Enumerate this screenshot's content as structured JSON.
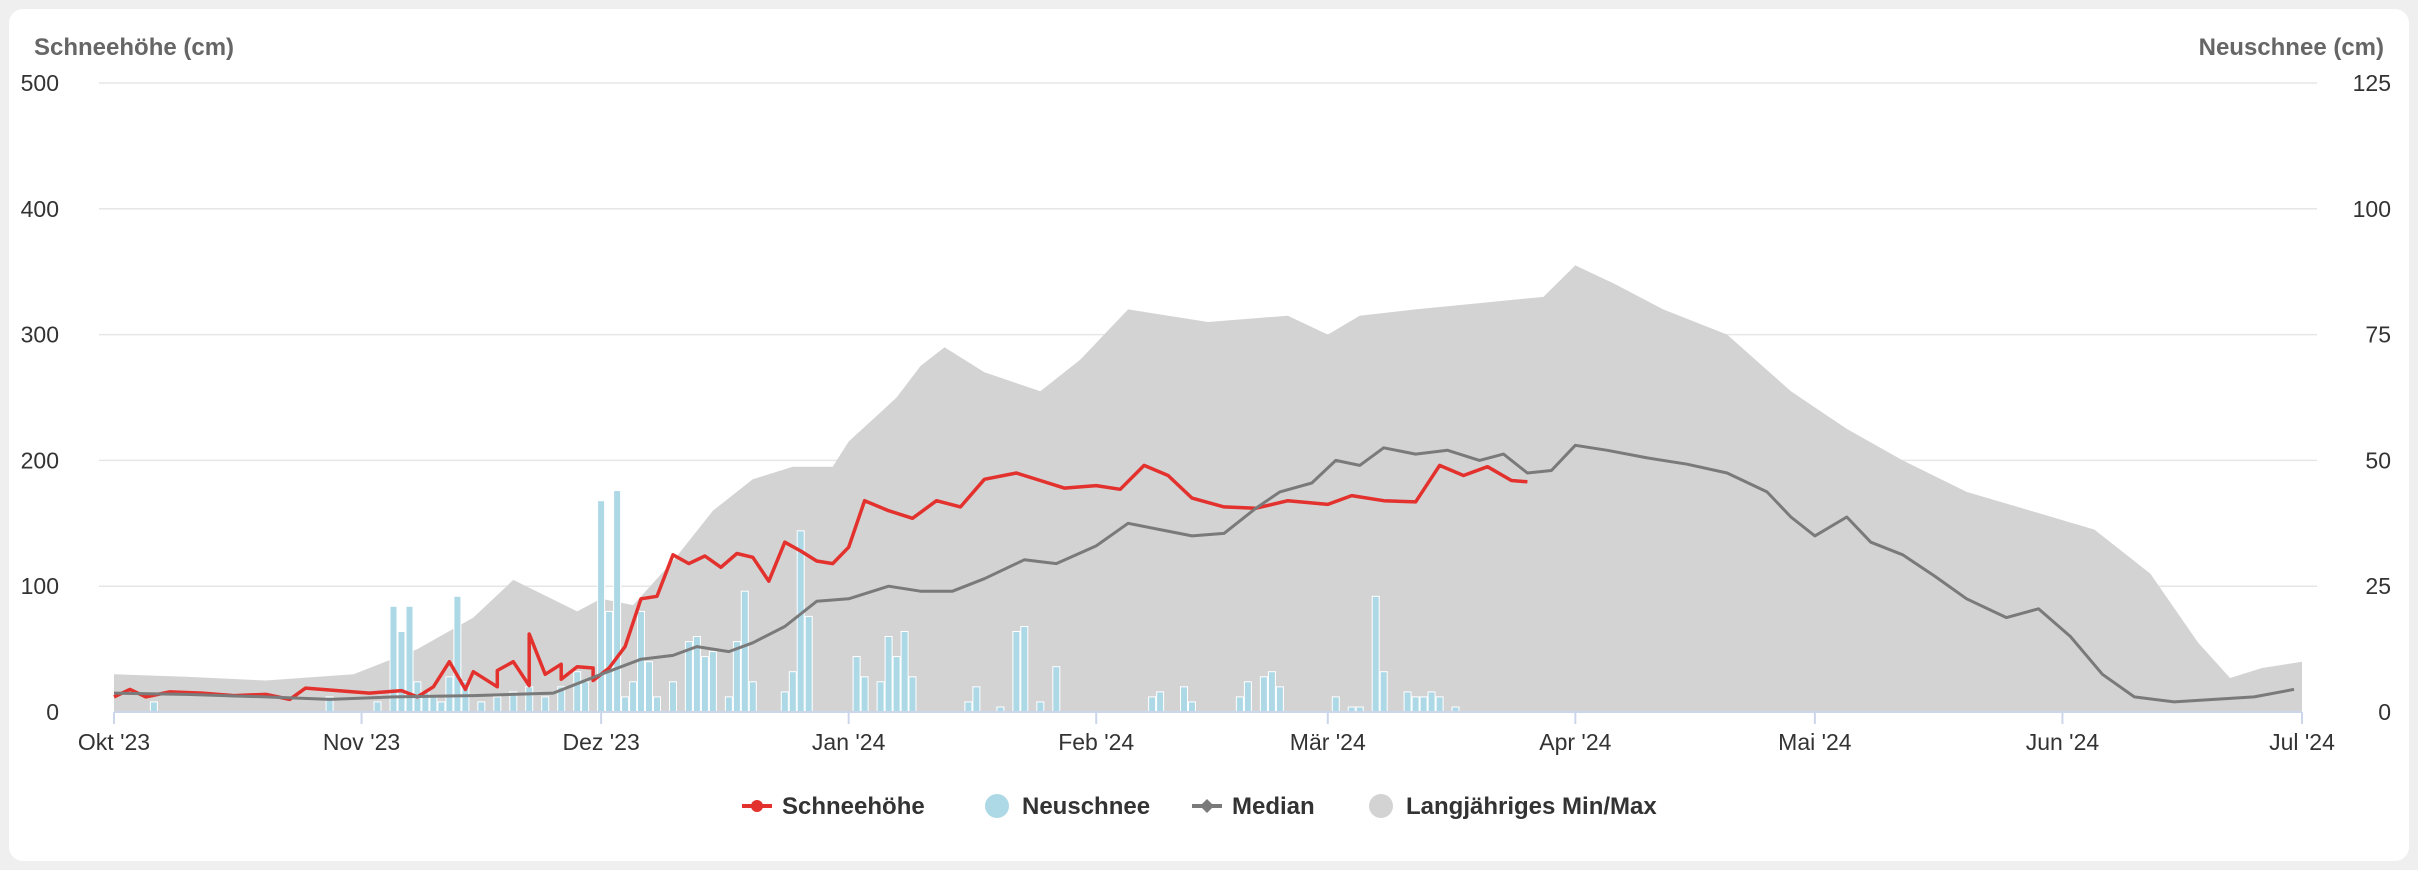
{
  "colors": {
    "schneehoehe": "#e3312d",
    "neuschnee": "#add8e6",
    "median": "#7a7a7a",
    "minmax": "#d3d3d3",
    "grid": "#e6e6e6",
    "axis": "#ccd6eb"
  },
  "chart_data": {
    "type": "line",
    "xlabel": "",
    "y_left": {
      "label": "Schneehöhe (cm)",
      "min": 0,
      "max": 500,
      "ticks": [
        0,
        100,
        200,
        300,
        400,
        500
      ]
    },
    "y_right": {
      "label": "Neuschnee (cm)",
      "min": 0,
      "max": 125,
      "ticks": [
        0,
        25,
        50,
        75,
        100,
        125
      ]
    },
    "x_range": [
      "2023-10-01",
      "2024-07-01"
    ],
    "x_ticks": [
      {
        "date": "2023-10-01",
        "label": "Okt '23"
      },
      {
        "date": "2023-11-01",
        "label": "Nov '23"
      },
      {
        "date": "2023-12-01",
        "label": "Dez '23"
      },
      {
        "date": "2024-01-01",
        "label": "Jan '24"
      },
      {
        "date": "2024-02-01",
        "label": "Feb '24"
      },
      {
        "date": "2024-03-01",
        "label": "Mär '24"
      },
      {
        "date": "2024-04-01",
        "label": "Apr '24"
      },
      {
        "date": "2024-05-01",
        "label": "Mai '24"
      },
      {
        "date": "2024-06-01",
        "label": "Jun '24"
      },
      {
        "date": "2024-07-01",
        "label": "Jul '24"
      }
    ],
    "grid": true,
    "legend_position": "bottom-center",
    "series": [
      {
        "name": "Schneehöhe",
        "type": "line",
        "axis": "left",
        "points": [
          [
            "2023-10-01",
            12
          ],
          [
            "2023-10-03",
            18
          ],
          [
            "2023-10-05",
            12
          ],
          [
            "2023-10-08",
            16
          ],
          [
            "2023-10-12",
            15
          ],
          [
            "2023-10-16",
            13
          ],
          [
            "2023-10-20",
            14
          ],
          [
            "2023-10-23",
            10
          ],
          [
            "2023-10-25",
            19
          ],
          [
            "2023-10-29",
            17
          ],
          [
            "2023-11-02",
            15
          ],
          [
            "2023-11-06",
            17
          ],
          [
            "2023-11-08",
            12
          ],
          [
            "2023-11-10",
            20
          ],
          [
            "2023-11-14",
            18
          ],
          [
            "2023-11-18",
            20
          ],
          [
            "2023-11-22",
            21
          ],
          [
            "2023-11-26",
            38
          ],
          [
            "2023-11-30",
            35
          ],
          [
            "2023-11-10",
            20
          ],
          [
            "2023-11-12",
            40
          ],
          [
            "2023-11-15",
            32
          ],
          [
            "2023-11-18",
            33
          ],
          [
            "2023-11-20",
            40
          ],
          [
            "2023-11-22",
            62
          ],
          [
            "2023-11-24",
            30
          ],
          [
            "2023-11-26",
            26
          ],
          [
            "2023-11-28",
            36
          ],
          [
            "2023-11-30",
            25
          ],
          [
            "2023-12-02",
            35
          ],
          [
            "2023-12-04",
            52
          ],
          [
            "2023-12-06",
            90
          ],
          [
            "2023-12-08",
            92
          ],
          [
            "2023-12-10",
            125
          ],
          [
            "2023-12-12",
            118
          ],
          [
            "2023-12-14",
            124
          ],
          [
            "2023-12-16",
            115
          ],
          [
            "2023-12-18",
            126
          ],
          [
            "2023-12-20",
            123
          ],
          [
            "2023-12-22",
            104
          ],
          [
            "2023-12-24",
            135
          ],
          [
            "2023-12-26",
            128
          ],
          [
            "2023-12-28",
            120
          ],
          [
            "2023-12-30",
            118
          ],
          [
            "2024-01-01",
            131
          ],
          [
            "2024-01-03",
            168
          ],
          [
            "2024-01-06",
            160
          ],
          [
            "2024-01-09",
            154
          ],
          [
            "2024-01-12",
            168
          ],
          [
            "2024-01-15",
            163
          ],
          [
            "2024-01-18",
            185
          ],
          [
            "2024-01-22",
            190
          ],
          [
            "2024-01-25",
            184
          ],
          [
            "2024-01-28",
            178
          ],
          [
            "2024-02-01",
            180
          ],
          [
            "2024-02-04",
            177
          ],
          [
            "2024-02-07",
            196
          ],
          [
            "2024-02-10",
            188
          ],
          [
            "2024-02-13",
            170
          ],
          [
            "2024-02-17",
            163
          ],
          [
            "2024-02-21",
            162
          ],
          [
            "2024-02-25",
            168
          ],
          [
            "2024-03-01",
            165
          ],
          [
            "2024-03-04",
            172
          ],
          [
            "2024-03-08",
            168
          ],
          [
            "2024-03-12",
            167
          ],
          [
            "2024-03-15",
            196
          ],
          [
            "2024-03-18",
            188
          ],
          [
            "2024-03-21",
            195
          ],
          [
            "2024-03-24",
            184
          ],
          [
            "2024-03-26",
            183
          ]
        ]
      },
      {
        "name": "Neuschnee",
        "type": "column",
        "axis": "right",
        "points": [
          [
            "2023-10-06",
            2
          ],
          [
            "2023-10-28",
            3
          ],
          [
            "2023-11-03",
            2
          ],
          [
            "2023-11-05",
            21
          ],
          [
            "2023-11-06",
            16
          ],
          [
            "2023-11-07",
            21
          ],
          [
            "2023-11-08",
            6
          ],
          [
            "2023-11-09",
            4
          ],
          [
            "2023-11-10",
            3
          ],
          [
            "2023-11-11",
            2
          ],
          [
            "2023-11-12",
            7
          ],
          [
            "2023-11-13",
            23
          ],
          [
            "2023-11-14",
            6
          ],
          [
            "2023-11-16",
            2
          ],
          [
            "2023-11-18",
            3
          ],
          [
            "2023-11-20",
            4
          ],
          [
            "2023-11-22",
            5
          ],
          [
            "2023-11-24",
            3
          ],
          [
            "2023-11-26",
            5
          ],
          [
            "2023-11-28",
            8
          ],
          [
            "2023-11-29",
            6
          ],
          [
            "2023-12-01",
            42
          ],
          [
            "2023-12-02",
            20
          ],
          [
            "2023-12-03",
            44
          ],
          [
            "2023-12-04",
            3
          ],
          [
            "2023-12-05",
            6
          ],
          [
            "2023-12-06",
            20
          ],
          [
            "2023-12-07",
            10
          ],
          [
            "2023-12-08",
            3
          ],
          [
            "2023-12-10",
            6
          ],
          [
            "2023-12-12",
            14
          ],
          [
            "2023-12-13",
            15
          ],
          [
            "2023-12-14",
            11
          ],
          [
            "2023-12-15",
            12
          ],
          [
            "2023-12-17",
            3
          ],
          [
            "2023-12-18",
            14
          ],
          [
            "2023-12-19",
            24
          ],
          [
            "2023-12-20",
            6
          ],
          [
            "2023-12-24",
            4
          ],
          [
            "2023-12-25",
            8
          ],
          [
            "2023-12-26",
            36
          ],
          [
            "2023-12-27",
            19
          ],
          [
            "2024-01-02",
            11
          ],
          [
            "2024-01-03",
            7
          ],
          [
            "2024-01-05",
            6
          ],
          [
            "2024-01-06",
            15
          ],
          [
            "2024-01-07",
            11
          ],
          [
            "2024-01-08",
            16
          ],
          [
            "2024-01-09",
            7
          ],
          [
            "2024-01-16",
            2
          ],
          [
            "2024-01-17",
            5
          ],
          [
            "2024-01-20",
            1
          ],
          [
            "2024-01-22",
            16
          ],
          [
            "2024-01-23",
            17
          ],
          [
            "2024-01-25",
            2
          ],
          [
            "2024-01-27",
            9
          ],
          [
            "2024-02-08",
            3
          ],
          [
            "2024-02-09",
            4
          ],
          [
            "2024-02-12",
            5
          ],
          [
            "2024-02-13",
            2
          ],
          [
            "2024-02-19",
            3
          ],
          [
            "2024-02-20",
            6
          ],
          [
            "2024-02-22",
            7
          ],
          [
            "2024-02-23",
            8
          ],
          [
            "2024-02-24",
            5
          ],
          [
            "2024-03-02",
            3
          ],
          [
            "2024-03-04",
            1
          ],
          [
            "2024-03-05",
            1
          ],
          [
            "2024-03-07",
            23
          ],
          [
            "2024-03-08",
            8
          ],
          [
            "2024-03-11",
            4
          ],
          [
            "2024-03-12",
            3
          ],
          [
            "2024-03-13",
            3
          ],
          [
            "2024-03-14",
            4
          ],
          [
            "2024-03-15",
            3
          ],
          [
            "2024-03-17",
            1
          ]
        ]
      },
      {
        "name": "Median",
        "type": "line",
        "axis": "left",
        "points": [
          [
            "2023-10-01",
            15
          ],
          [
            "2023-10-10",
            14
          ],
          [
            "2023-10-20",
            12
          ],
          [
            "2023-10-28",
            10
          ],
          [
            "2023-11-05",
            12
          ],
          [
            "2023-11-15",
            13
          ],
          [
            "2023-11-25",
            15
          ],
          [
            "2023-12-01",
            30
          ],
          [
            "2023-12-06",
            42
          ],
          [
            "2023-12-10",
            45
          ],
          [
            "2023-12-13",
            52
          ],
          [
            "2023-12-17",
            48
          ],
          [
            "2023-12-20",
            55
          ],
          [
            "2023-12-24",
            68
          ],
          [
            "2023-12-28",
            88
          ],
          [
            "2024-01-01",
            90
          ],
          [
            "2024-01-06",
            100
          ],
          [
            "2024-01-10",
            96
          ],
          [
            "2024-01-14",
            96
          ],
          [
            "2024-01-18",
            106
          ],
          [
            "2024-01-23",
            121
          ],
          [
            "2024-01-27",
            118
          ],
          [
            "2024-02-01",
            132
          ],
          [
            "2024-02-05",
            150
          ],
          [
            "2024-02-09",
            145
          ],
          [
            "2024-02-13",
            140
          ],
          [
            "2024-02-17",
            142
          ],
          [
            "2024-02-21",
            162
          ],
          [
            "2024-02-24",
            175
          ],
          [
            "2024-02-28",
            182
          ],
          [
            "2024-03-02",
            200
          ],
          [
            "2024-03-05",
            196
          ],
          [
            "2024-03-08",
            210
          ],
          [
            "2024-03-12",
            205
          ],
          [
            "2024-03-16",
            208
          ],
          [
            "2024-03-20",
            200
          ],
          [
            "2024-03-23",
            205
          ],
          [
            "2024-03-26",
            190
          ],
          [
            "2024-03-29",
            192
          ],
          [
            "2024-04-01",
            212
          ],
          [
            "2024-04-05",
            208
          ],
          [
            "2024-04-10",
            202
          ],
          [
            "2024-04-15",
            197
          ],
          [
            "2024-04-20",
            190
          ],
          [
            "2024-04-25",
            175
          ],
          [
            "2024-04-28",
            155
          ],
          [
            "2024-05-01",
            140
          ],
          [
            "2024-05-05",
            155
          ],
          [
            "2024-05-08",
            135
          ],
          [
            "2024-05-12",
            125
          ],
          [
            "2024-05-16",
            108
          ],
          [
            "2024-05-20",
            90
          ],
          [
            "2024-05-25",
            75
          ],
          [
            "2024-05-29",
            82
          ],
          [
            "2024-06-02",
            60
          ],
          [
            "2024-06-06",
            30
          ],
          [
            "2024-06-10",
            12
          ],
          [
            "2024-06-15",
            8
          ],
          [
            "2024-06-20",
            10
          ],
          [
            "2024-06-25",
            12
          ],
          [
            "2024-06-30",
            18
          ]
        ]
      },
      {
        "name": "Langjähriges Min/Max",
        "type": "arearange",
        "axis": "left",
        "points": [
          [
            "2023-10-01",
            0,
            30
          ],
          [
            "2023-10-10",
            0,
            28
          ],
          [
            "2023-10-20",
            0,
            25
          ],
          [
            "2023-10-31",
            0,
            30
          ],
          [
            "2023-11-08",
            0,
            50
          ],
          [
            "2023-11-15",
            0,
            75
          ],
          [
            "2023-11-20",
            0,
            105
          ],
          [
            "2023-11-28",
            0,
            80
          ],
          [
            "2023-12-01",
            0,
            90
          ],
          [
            "2023-12-05",
            0,
            85
          ],
          [
            "2023-12-10",
            0,
            120
          ],
          [
            "2023-12-15",
            0,
            160
          ],
          [
            "2023-12-20",
            0,
            185
          ],
          [
            "2023-12-25",
            0,
            195
          ],
          [
            "2023-12-30",
            0,
            195
          ],
          [
            "2024-01-01",
            0,
            215
          ],
          [
            "2024-01-07",
            0,
            250
          ],
          [
            "2024-01-10",
            0,
            275
          ],
          [
            "2024-01-13",
            0,
            290
          ],
          [
            "2024-01-18",
            0,
            270
          ],
          [
            "2024-01-25",
            0,
            255
          ],
          [
            "2024-01-30",
            0,
            280
          ],
          [
            "2024-02-05",
            0,
            320
          ],
          [
            "2024-02-15",
            0,
            310
          ],
          [
            "2024-02-25",
            0,
            315
          ],
          [
            "2024-03-01",
            0,
            300
          ],
          [
            "2024-03-05",
            0,
            315
          ],
          [
            "2024-03-12",
            0,
            320
          ],
          [
            "2024-03-20",
            0,
            325
          ],
          [
            "2024-03-28",
            0,
            330
          ],
          [
            "2024-04-01",
            0,
            355
          ],
          [
            "2024-04-06",
            0,
            340
          ],
          [
            "2024-04-12",
            0,
            320
          ],
          [
            "2024-04-20",
            0,
            300
          ],
          [
            "2024-04-28",
            0,
            255
          ],
          [
            "2024-05-05",
            0,
            225
          ],
          [
            "2024-05-12",
            0,
            200
          ],
          [
            "2024-05-20",
            0,
            175
          ],
          [
            "2024-05-28",
            0,
            160
          ],
          [
            "2024-06-05",
            0,
            145
          ],
          [
            "2024-06-12",
            0,
            110
          ],
          [
            "2024-06-18",
            0,
            55
          ],
          [
            "2024-06-22",
            0,
            27
          ],
          [
            "2024-06-26",
            0,
            35
          ],
          [
            "2024-07-01",
            0,
            40
          ]
        ]
      }
    ]
  }
}
